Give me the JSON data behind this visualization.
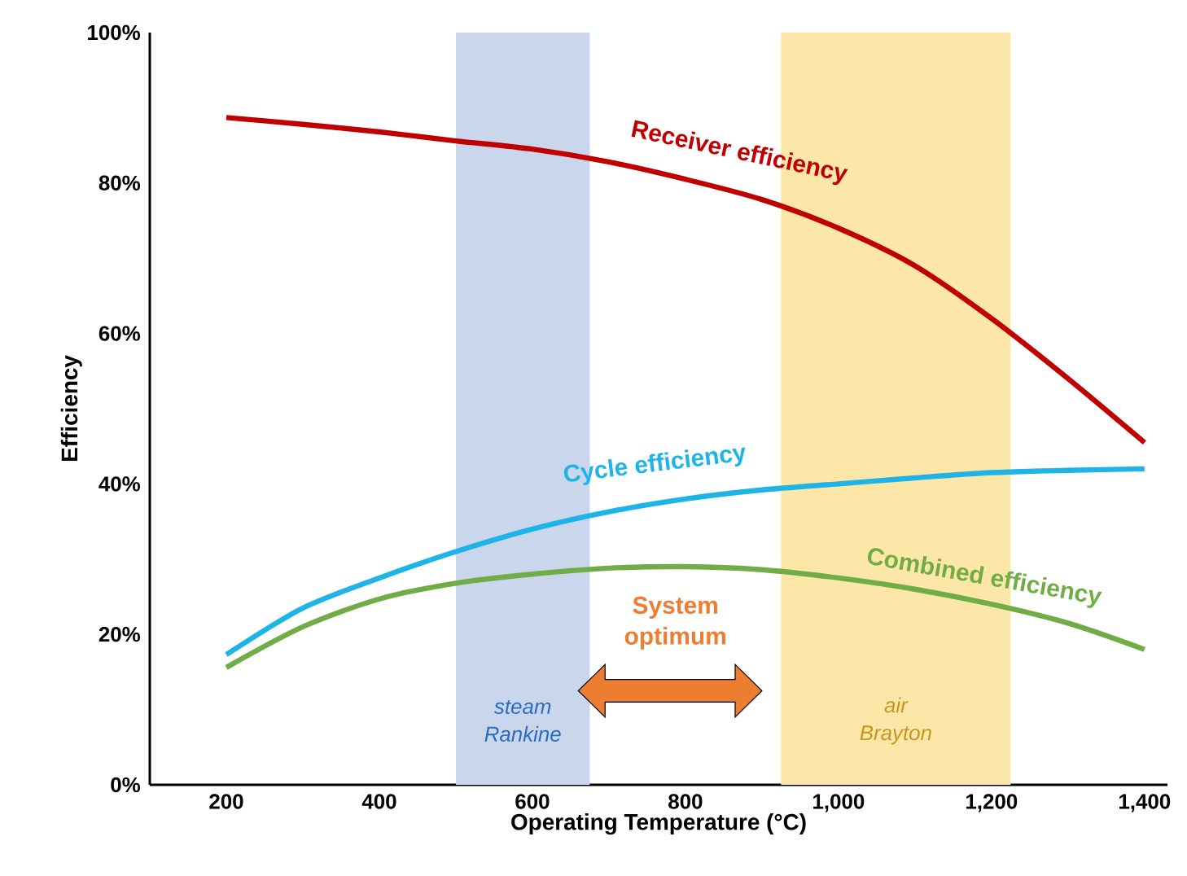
{
  "chart_data": {
    "type": "line",
    "xlabel": "Operating Temperature (°C)",
    "ylabel": "Efficiency",
    "x": [
      200,
      300,
      400,
      500,
      600,
      700,
      800,
      900,
      1000,
      1100,
      1200,
      1300,
      1400
    ],
    "series": [
      {
        "name": "Receiver efficiency",
        "color": "#c00000",
        "values": [
          88.7,
          87.8,
          86.8,
          85.6,
          84.5,
          82.8,
          80.5,
          77.8,
          74,
          69,
          62,
          54,
          45.5
        ]
      },
      {
        "name": "Cycle efficiency",
        "color": "#1fb4e8",
        "values": [
          17.3,
          23.5,
          27.5,
          31,
          34,
          36.3,
          38,
          39.2,
          40,
          40.8,
          41.5,
          41.8,
          42
        ]
      },
      {
        "name": "Combined efficiency",
        "color": "#70ad47",
        "values": [
          15.6,
          21,
          24.7,
          26.8,
          28,
          28.8,
          29,
          28.6,
          27.5,
          26,
          24,
          21.5,
          18
        ]
      }
    ],
    "xlim": [
      100,
      1430
    ],
    "ylim": [
      0,
      100
    ],
    "xticks": [
      200,
      400,
      600,
      800,
      {
        "value": 1000,
        "label": "1,000"
      },
      {
        "value": 1200,
        "label": "1,200"
      },
      {
        "value": 1400,
        "label": "1,400"
      }
    ],
    "yticks": [
      {
        "value": 0,
        "label": "0%"
      },
      {
        "value": 20,
        "label": "20%"
      },
      {
        "value": 40,
        "label": "40%"
      },
      {
        "value": 60,
        "label": "60%"
      },
      {
        "value": 80,
        "label": "80%"
      },
      {
        "value": 100,
        "label": "100%"
      }
    ],
    "bands": [
      {
        "axis": "x",
        "from": 500,
        "to": 675,
        "label": "steam Rankine",
        "color": "#c9d6ec"
      },
      {
        "axis": "x",
        "from": 925,
        "to": 1225,
        "label": "air Brayton",
        "color": "#fde7a8"
      }
    ],
    "annotations": [
      "System optimum"
    ],
    "grid": false,
    "marker": "none",
    "line_style": "solid"
  }
}
